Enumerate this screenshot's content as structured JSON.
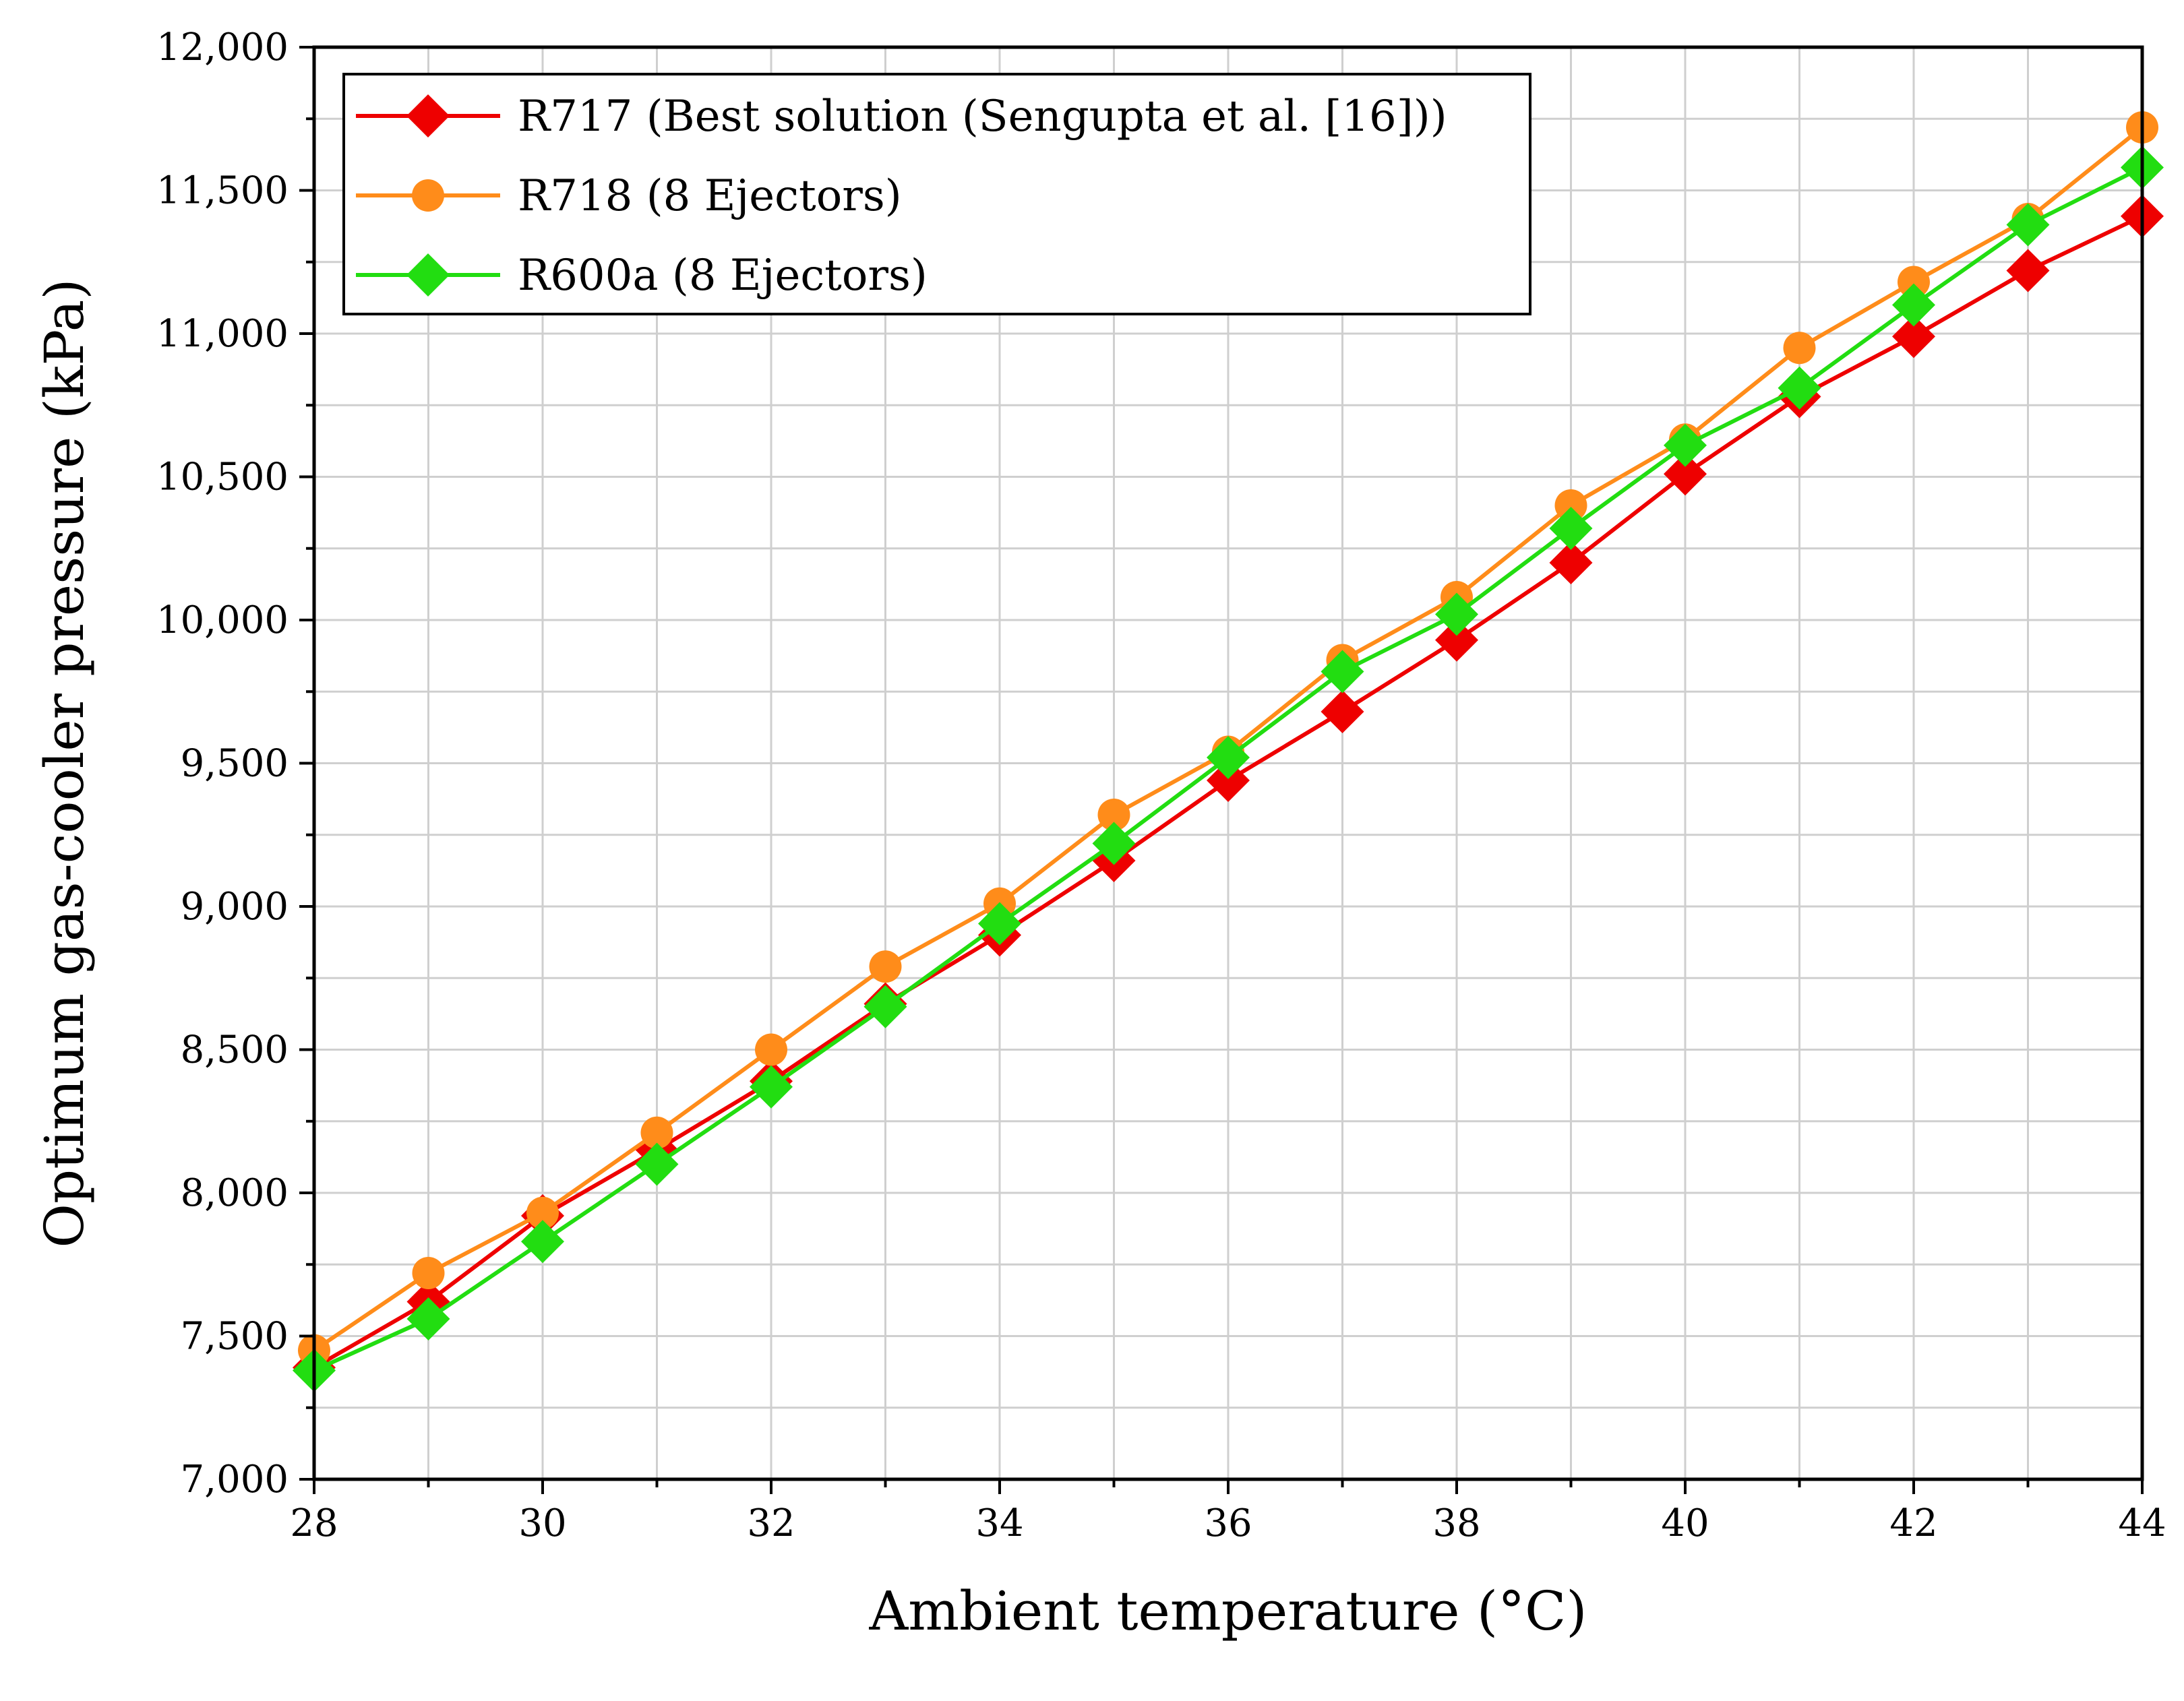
{
  "chart_data": {
    "type": "line",
    "title": "",
    "xlabel": "Ambient temperature (°C)",
    "ylabel": "Optimum gas-cooler pressure (kPa)",
    "xlim": [
      28,
      44
    ],
    "ylim": [
      7000,
      12000
    ],
    "xticks": [
      28,
      30,
      32,
      34,
      36,
      38,
      40,
      42,
      44
    ],
    "xtick_labels": [
      "28",
      "30",
      "32",
      "34",
      "36",
      "38",
      "40",
      "42",
      "44"
    ],
    "yticks": [
      7000,
      7500,
      8000,
      8500,
      9000,
      9500,
      10000,
      10500,
      11000,
      11500,
      12000
    ],
    "ytick_labels": [
      "7,000",
      "7,500",
      "8,000",
      "8,500",
      "9,000",
      "9,500",
      "10,000",
      "10,500",
      "11,000",
      "11,500",
      "12,000"
    ],
    "grid": true,
    "legend_position": "top-left",
    "x": [
      28,
      29,
      30,
      31,
      32,
      33,
      34,
      35,
      36,
      37,
      38,
      39,
      40,
      41,
      42,
      43,
      44
    ],
    "series": [
      {
        "name": "R717 (Best solution (Sengupta et al. [16]))",
        "color": "#ee0000",
        "marker": "diamond",
        "values": [
          7390,
          7620,
          7920,
          8150,
          8390,
          8660,
          8900,
          9160,
          9440,
          9680,
          9930,
          10200,
          10510,
          10780,
          10990,
          11220,
          11410
        ]
      },
      {
        "name": "R718 (8 Ejectors)",
        "color": "#ff8c1a",
        "marker": "circle",
        "values": [
          7450,
          7720,
          7930,
          8210,
          8500,
          8790,
          9010,
          9320,
          9540,
          9860,
          10080,
          10400,
          10630,
          10950,
          11180,
          11400,
          11720
        ]
      },
      {
        "name": "R600a (8 Ejectors)",
        "color": "#22dd11",
        "marker": "diamond",
        "values": [
          7380,
          7560,
          7830,
          8100,
          8370,
          8650,
          8940,
          9220,
          9520,
          9820,
          10020,
          10320,
          10610,
          10810,
          11100,
          11380,
          11580
        ]
      }
    ]
  }
}
